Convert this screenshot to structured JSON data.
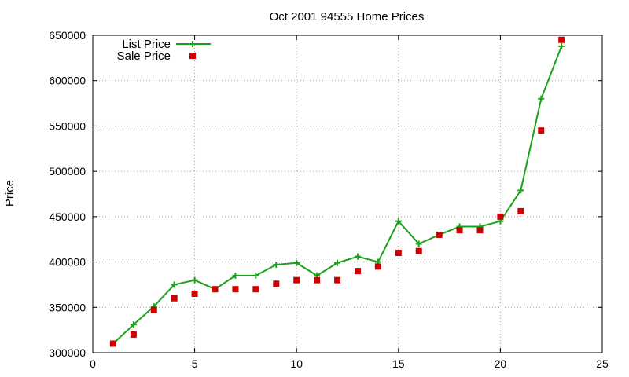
{
  "chart_data": {
    "type": "line",
    "title": "Oct 2001 94555 Home Prices",
    "xlabel": "",
    "ylabel": "Price",
    "xlim": [
      0,
      25
    ],
    "ylim": [
      300000,
      650000
    ],
    "xticks": [
      0,
      5,
      10,
      15,
      20,
      25
    ],
    "yticks": [
      300000,
      350000,
      400000,
      450000,
      500000,
      550000,
      600000,
      650000
    ],
    "grid": true,
    "legend_position": "top-left",
    "series": [
      {
        "name": "List Price",
        "style": "line-plus",
        "color": "#1aa31a",
        "x": [
          1,
          2,
          3,
          4,
          5,
          6,
          7,
          8,
          9,
          10,
          11,
          12,
          13,
          14,
          15,
          16,
          17,
          18,
          19,
          20,
          21,
          22,
          23
        ],
        "y": [
          310000,
          331000,
          351000,
          375000,
          380000,
          370000,
          385000,
          385000,
          397000,
          399000,
          385000,
          399000,
          406000,
          400000,
          445000,
          420000,
          430000,
          439000,
          439000,
          445000,
          479000,
          580000,
          638000
        ]
      },
      {
        "name": "Sale Price",
        "style": "square-markers",
        "color": "#cc0000",
        "x": [
          1,
          2,
          3,
          4,
          5,
          6,
          7,
          8,
          9,
          10,
          11,
          12,
          13,
          14,
          15,
          16,
          17,
          18,
          19,
          20,
          21,
          22,
          23
        ],
        "y": [
          310000,
          320000,
          347000,
          360000,
          365000,
          370000,
          370000,
          370000,
          376000,
          380000,
          380000,
          380000,
          390000,
          395000,
          410000,
          412000,
          430000,
          435000,
          435000,
          450000,
          456000,
          545000,
          645000
        ]
      }
    ]
  }
}
